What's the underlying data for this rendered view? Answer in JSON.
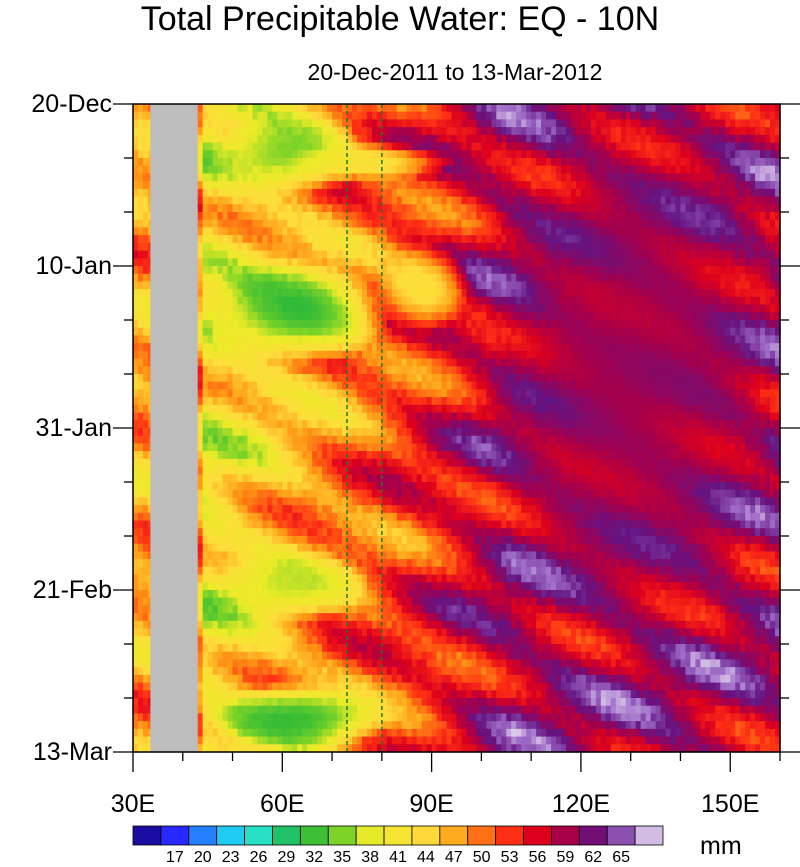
{
  "chart_data": {
    "type": "heatmap",
    "title": "Total Precipitable Water: EQ - 10N",
    "subtitle": "20-Dec-2011 to 13-Mar-2012",
    "x_axis": {
      "range": [
        30,
        160
      ],
      "ticks": [
        30,
        60,
        90,
        120,
        150
      ],
      "tick_labels": [
        "30E",
        "60E",
        "90E",
        "120E",
        "150E"
      ]
    },
    "y_axis": {
      "range_days": [
        0,
        84
      ],
      "ticks_days": [
        0,
        21,
        42,
        63,
        84
      ],
      "tick_labels": [
        "20-Dec",
        "10-Jan",
        "31-Jan",
        "21-Feb",
        "13-Mar"
      ],
      "direction": "top-to-bottom"
    },
    "colorbar": {
      "unit": "mm",
      "labels": [
        "17",
        "20",
        "23",
        "26",
        "29",
        "32",
        "35",
        "38",
        "41",
        "44",
        "47",
        "50",
        "53",
        "56",
        "59",
        "62",
        "65"
      ],
      "min": 15,
      "max": 66
    },
    "reference_lines_lon": [
      73,
      80
    ],
    "land_mask_lon": [
      33.5,
      43
    ],
    "regions": [
      {
        "lon_range": [
          46,
          77
        ],
        "days": [
          1,
          12
        ],
        "value_mm": 33
      },
      {
        "lon_range": [
          60,
          95
        ],
        "days": [
          5,
          10
        ],
        "value_mm": 40
      },
      {
        "lon_range": [
          45,
          82
        ],
        "days": [
          20,
          34
        ],
        "value_mm": 30
      },
      {
        "lon_range": [
          78,
          98
        ],
        "days": [
          18,
          30
        ],
        "value_mm": 40
      },
      {
        "lon_range": [
          100,
          160
        ],
        "days": [
          0,
          70
        ],
        "value_mm": 57
      },
      {
        "lon_range": [
          45,
          78
        ],
        "days": [
          58,
          67
        ],
        "value_mm": 36
      },
      {
        "lon_range": [
          45,
          82
        ],
        "days": [
          75,
          84
        ],
        "value_mm": 30
      }
    ]
  }
}
